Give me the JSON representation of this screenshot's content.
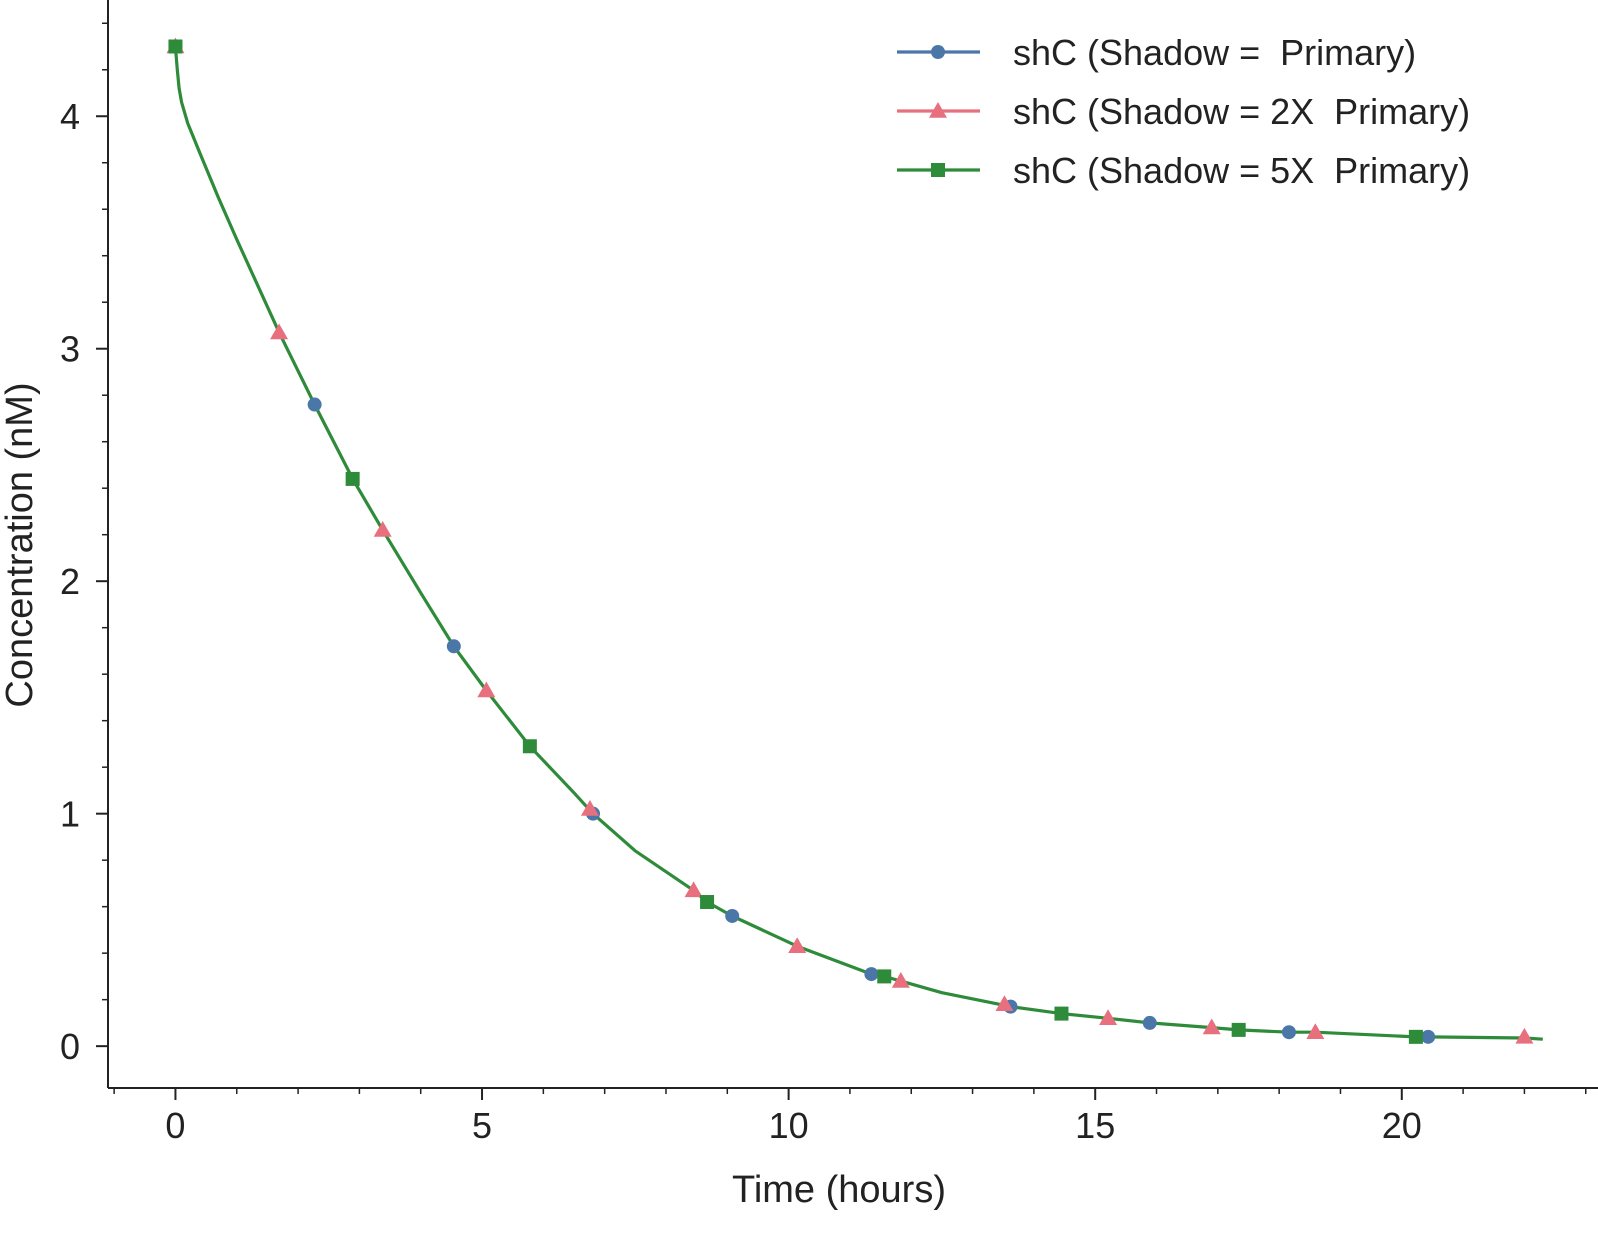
{
  "chart_data": {
    "type": "line",
    "title": "",
    "xlabel": "Time (hours)",
    "ylabel": "Concentration (nM)",
    "xlim": [
      -1.1,
      23.2
    ],
    "ylim": [
      -0.18,
      4.5
    ],
    "x_ticks": [
      0,
      5,
      10,
      15,
      20
    ],
    "y_ticks": [
      0,
      1,
      2,
      3,
      4
    ],
    "grid": false,
    "legend_position": "top-right",
    "series": [
      {
        "name": "shC (Shadow =  Primary)",
        "color": "#4a77a8",
        "marker": "circle",
        "x": [
          0,
          2.27,
          4.54,
          6.81,
          9.08,
          11.35,
          13.62,
          15.89,
          18.16,
          20.43
        ],
        "y": [
          4.3,
          2.76,
          1.72,
          1.0,
          0.56,
          0.31,
          0.17,
          0.1,
          0.06,
          0.04
        ]
      },
      {
        "name": "shC (Shadow = 2X  Primary)",
        "color": "#e8707e",
        "marker": "triangle",
        "x": [
          0,
          1.69,
          3.38,
          5.07,
          6.76,
          8.45,
          10.14,
          11.83,
          13.52,
          15.21,
          16.9,
          18.59,
          22.0
        ],
        "y": [
          4.3,
          3.07,
          2.22,
          1.53,
          1.02,
          0.67,
          0.43,
          0.28,
          0.18,
          0.12,
          0.08,
          0.06,
          0.04
        ]
      },
      {
        "name": "shC (Shadow = 5X  Primary)",
        "color": "#2e8b3a",
        "marker": "square",
        "x": [
          0,
          2.89,
          5.78,
          8.67,
          11.56,
          14.45,
          17.34,
          20.23
        ],
        "y": [
          4.3,
          2.44,
          1.29,
          0.62,
          0.3,
          0.14,
          0.07,
          0.04
        ]
      }
    ],
    "curve": {
      "x": [
        0,
        0.03,
        0.06,
        0.1,
        0.2,
        0.4,
        0.7,
        1.0,
        1.69,
        2.27,
        2.89,
        3.38,
        4.0,
        4.54,
        5.07,
        5.78,
        6.5,
        6.81,
        7.5,
        8.45,
        8.67,
        9.08,
        10.14,
        11.35,
        11.56,
        11.83,
        12.5,
        13.62,
        14.45,
        15.21,
        15.89,
        16.9,
        17.34,
        18.16,
        18.59,
        20.23,
        20.43,
        22.0,
        22.3
      ],
      "y": [
        4.3,
        4.2,
        4.12,
        4.06,
        3.97,
        3.84,
        3.65,
        3.47,
        3.07,
        2.76,
        2.44,
        2.22,
        1.95,
        1.72,
        1.53,
        1.29,
        1.09,
        1.0,
        0.84,
        0.67,
        0.62,
        0.56,
        0.43,
        0.31,
        0.3,
        0.28,
        0.23,
        0.17,
        0.14,
        0.12,
        0.1,
        0.08,
        0.07,
        0.06,
        0.06,
        0.04,
        0.04,
        0.035,
        0.03
      ],
      "color": "#2e8b3a"
    }
  }
}
